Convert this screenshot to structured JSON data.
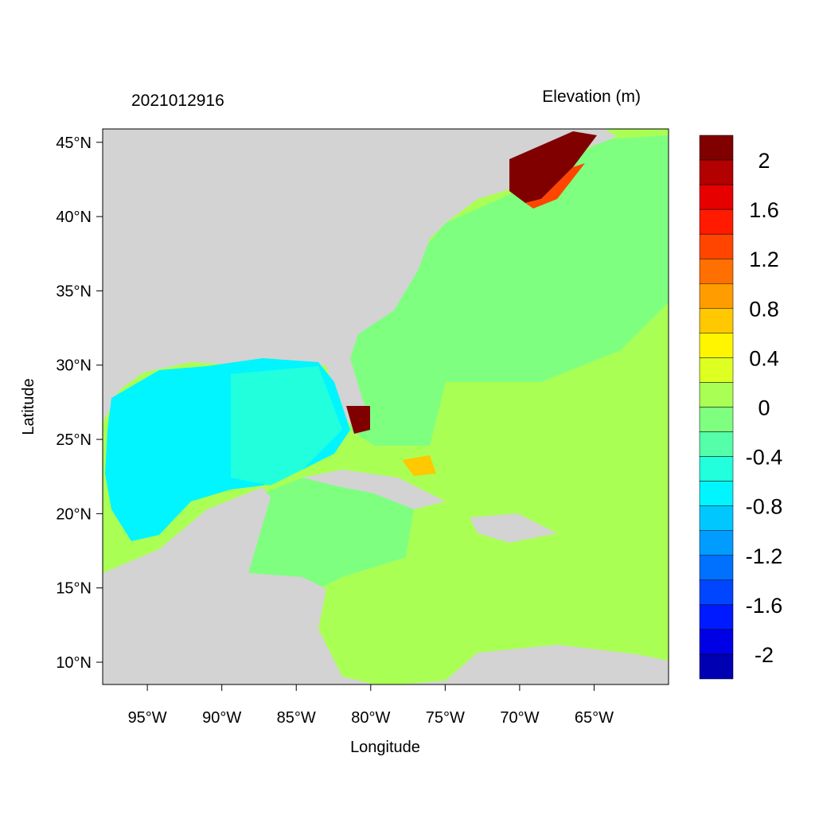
{
  "chart_data": {
    "type": "heatmap",
    "title_left": "2021012916",
    "title_right": "Elevation (m)",
    "xlabel": "Longitude",
    "ylabel": "Latitude",
    "xlim": [
      -98,
      -60
    ],
    "ylim": [
      8.5,
      45.9
    ],
    "x_ticks": [
      -95,
      -90,
      -85,
      -80,
      -75,
      -70,
      -65
    ],
    "x_tick_labels": [
      "95°W",
      "90°W",
      "85°W",
      "80°W",
      "75°W",
      "70°W",
      "65°W"
    ],
    "y_ticks": [
      45,
      40,
      35,
      30,
      25,
      20,
      15,
      10
    ],
    "y_tick_labels": [
      "45°N",
      "40°N",
      "35°N",
      "30°N",
      "25°N",
      "20°N",
      "15°N",
      "10°N"
    ],
    "colorbar": {
      "range": [
        -2.2,
        2.2
      ],
      "step": 0.2,
      "colors": [
        "#800000",
        "#b30000",
        "#e60000",
        "#ff1a00",
        "#ff4500",
        "#ff7000",
        "#ff9c00",
        "#ffc800",
        "#fff500",
        "#ddff22",
        "#aaff55",
        "#7fff80",
        "#55ffaa",
        "#22ffdd",
        "#00f5ff",
        "#00c8ff",
        "#009cff",
        "#0070ff",
        "#0045ff",
        "#001aff",
        "#0000e6",
        "#0000b3"
      ],
      "tick_values": [
        2,
        1.6,
        1.2,
        0.8,
        0.4,
        0,
        -0.4,
        -0.8,
        -1.2,
        -1.6,
        -2
      ],
      "tick_labels": [
        "2",
        "1.6",
        "1.2",
        "0.8",
        "0.4",
        "0",
        "-0.4",
        "-0.8",
        "-1.2",
        "-1.6",
        "-2"
      ]
    },
    "land_color": "#d3d3d3"
  }
}
